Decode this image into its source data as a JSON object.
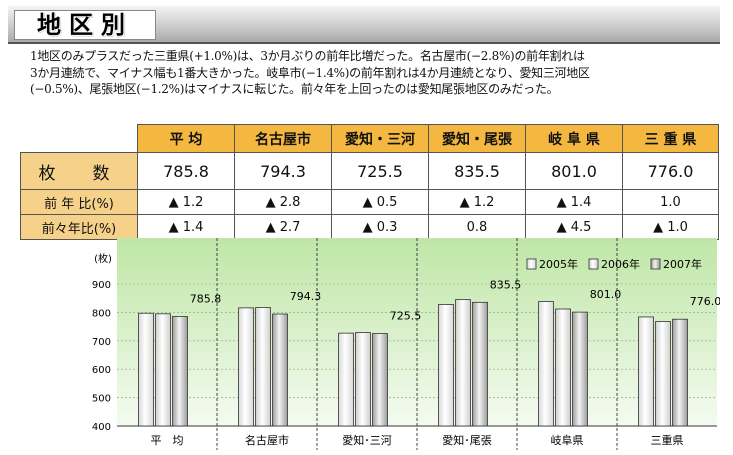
{
  "header": {
    "title": "地区別"
  },
  "summary": "1地区のみプラスだった三重県(+1.0%)は、3か月ぶりの前年比増だった。名古屋市(−2.8%)の前年割れは\n3か月連続で、マイナス幅も1番大きかった。岐阜市(−1.4%)の前年割れは4か月連続となり、愛知三河地区\n(−0.5%)、尾張地区(−1.2%)はマイナスに転じた。前々年を上回ったのは愛知尾張地区のみだった。",
  "table": {
    "columns": [
      "平 均",
      "名古屋市",
      "愛知・三河",
      "愛知・尾張",
      "岐 阜 県",
      "三 重 県"
    ],
    "rows": [
      {
        "label": "枚　数",
        "cells": [
          "785.8",
          "794.3",
          "725.5",
          "835.5",
          "801.0",
          "776.0"
        ]
      },
      {
        "label": "前 年 比(%)",
        "cells": [
          "▲ 1.2",
          "▲ 2.8",
          "▲ 0.5",
          "▲ 1.2",
          "▲ 1.4",
          "1.0"
        ]
      },
      {
        "label": "前々年比(%)",
        "cells": [
          "▲ 1.4",
          "▲ 2.7",
          "▲ 0.3",
          "0.8",
          "▲ 4.5",
          "▲ 1.0"
        ]
      }
    ]
  },
  "chart_data": {
    "type": "bar",
    "ylabel": "(枚)",
    "ylim": [
      400,
      900
    ],
    "yticks": [
      "900",
      "800",
      "700",
      "600",
      "500",
      "400"
    ],
    "categories": [
      "平　均",
      "名古屋市",
      "愛知･三河",
      "愛知･尾張",
      "岐阜県",
      "三重県"
    ],
    "series": [
      {
        "name": "2005年",
        "values": [
          797,
          816,
          727,
          828,
          838,
          784
        ]
      },
      {
        "name": "2006年",
        "values": [
          795,
          817,
          729,
          845,
          812,
          768
        ]
      },
      {
        "name": "2007年",
        "values": [
          785.8,
          794.3,
          725.5,
          835.5,
          801.0,
          776.0
        ]
      }
    ],
    "data_labels": [
      "785.8",
      "794.3",
      "725.5",
      "835.5",
      "801.0",
      "776.0"
    ],
    "grid": true,
    "legend_position": "top-right",
    "colors": {
      "background_top": "#bfe6a6",
      "background_bottom": "#f4fbf0",
      "bar_light": "#ffffff",
      "bar_dark": "#bcbcbc"
    }
  }
}
